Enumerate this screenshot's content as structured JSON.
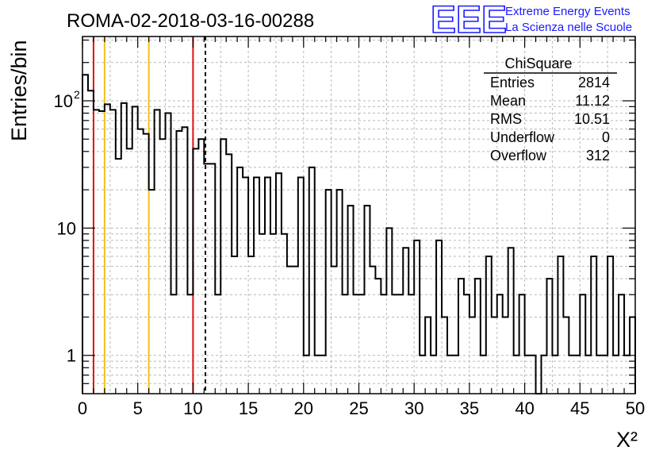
{
  "chart_data": {
    "type": "histogram",
    "title": "ROMA-02-2018-03-16-00288",
    "xlabel": "X²",
    "ylabel": "Entries/bin",
    "xlim": [
      0,
      50
    ],
    "ylim": [
      0.5,
      320
    ],
    "y_scale": "log",
    "grid": true,
    "bin_width": 0.5,
    "x_ticks": [
      0,
      5,
      10,
      15,
      20,
      25,
      30,
      35,
      40,
      45,
      50
    ],
    "y_ticks": [
      {
        "value": 1,
        "base": "1",
        "exp": ""
      },
      {
        "value": 10,
        "base": "10",
        "exp": ""
      },
      {
        "value": 100,
        "base": "10",
        "exp": "2"
      }
    ],
    "bin_values": [
      160,
      120,
      85,
      83,
      94,
      85,
      35,
      96,
      42,
      90,
      60,
      55,
      20,
      85,
      50,
      80,
      3,
      58,
      62,
      3,
      42,
      50,
      32,
      32,
      3,
      50,
      38,
      6,
      30,
      25,
      6,
      25,
      9,
      25,
      9,
      27,
      9,
      5,
      5,
      25,
      1,
      30,
      1,
      1,
      20,
      5,
      20,
      3,
      15,
      3,
      3,
      15,
      5,
      4,
      3,
      10,
      3,
      3,
      7,
      3,
      8,
      1,
      2,
      1,
      8,
      2,
      1,
      1,
      4,
      3,
      2,
      4,
      1,
      6,
      2,
      3,
      2,
      7,
      1,
      3,
      1,
      1,
      0,
      1,
      4,
      1,
      6,
      2,
      1,
      1,
      3,
      1,
      6,
      1,
      1,
      6,
      1,
      3,
      1,
      2
    ],
    "vertical_lines": [
      {
        "x": 1,
        "color": "#e01010",
        "style": "solid"
      },
      {
        "x": 2,
        "color": "#f2c01a",
        "style": "solid"
      },
      {
        "x": 6,
        "color": "#f2c01a",
        "style": "solid"
      },
      {
        "x": 10,
        "color": "#e01010",
        "style": "solid"
      },
      {
        "x": 11.12,
        "color": "#000000",
        "style": "dashed"
      }
    ],
    "stats_box": {
      "title": "ChiSquare",
      "rows": [
        {
          "label": "Entries",
          "value": "2814"
        },
        {
          "label": "Mean",
          "value": "11.12"
        },
        {
          "label": "RMS",
          "value": "10.51"
        },
        {
          "label": "Underflow",
          "value": "0"
        },
        {
          "label": "Overflow",
          "value": "312"
        }
      ]
    }
  },
  "logo": {
    "letters": "EEE",
    "line1": "Extreme Energy Events",
    "line2": "La Scienza nelle Scuole",
    "color": "#1a1aff"
  }
}
